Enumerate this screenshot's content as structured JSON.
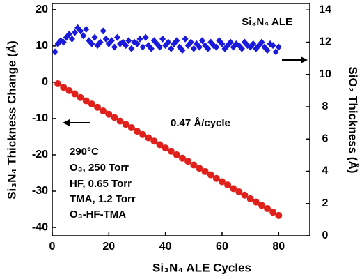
{
  "chart_data": {
    "type": "scatter",
    "xlabel": "Si₃N₄ ALE Cycles",
    "ylabel": "Si₃N₄ Thickness Change (Å)",
    "y2label": "SiO₂ Thickness (Å)",
    "annotations": [
      "Si₃N₄ ALE",
      "0.47 Å/cycle",
      "290°C",
      "O₃, 250 Torr",
      "HF, 0.65 Torr",
      "TMA, 1.2 Torr",
      "O₃-HF-TMA"
    ],
    "xlim": [
      0,
      91
    ],
    "xticks": [
      0,
      20,
      40,
      60,
      80
    ],
    "ylim": [
      -42.3,
      21.7
    ],
    "yticks": [
      -40,
      -30,
      -20,
      -10,
      0,
      10,
      20
    ],
    "y2lim": [
      0,
      14.4
    ],
    "y2ticks": [
      0,
      2,
      4,
      6,
      8,
      10,
      12,
      14
    ],
    "series": [
      {
        "color": "#e0201b",
        "marker": "circle",
        "x": [
          2,
          4,
          6,
          8,
          10,
          12,
          14,
          16,
          18,
          20,
          22,
          24,
          26,
          28,
          30,
          32,
          34,
          36,
          38,
          40,
          42,
          44,
          46,
          48,
          50,
          52,
          54,
          56,
          58,
          60,
          62,
          64,
          66,
          68,
          70,
          72,
          74,
          76,
          78,
          80
        ],
        "values": [
          -0.4,
          -1.4,
          -2.3,
          -3.2,
          -4.2,
          -5.1,
          -6.0,
          -6.9,
          -7.9,
          -8.8,
          -9.7,
          -10.7,
          -11.6,
          -12.5,
          -13.5,
          -14.4,
          -15.3,
          -16.2,
          -17.2,
          -18.1,
          -19.0,
          -20.0,
          -20.9,
          -21.8,
          -22.8,
          -23.7,
          -24.6,
          -25.5,
          -26.5,
          -27.4,
          -28.3,
          -29.3,
          -30.2,
          -31.1,
          -32.1,
          -33.0,
          -33.9,
          -34.8,
          -35.8,
          -36.7
        ]
      },
      {
        "color": "#1a1adc",
        "marker": "diamond",
        "axis": "y2",
        "x": [
          1,
          2,
          3,
          4,
          5,
          6,
          7,
          8,
          9,
          10,
          11,
          12,
          13,
          14,
          15,
          16,
          17,
          18,
          19,
          20,
          21,
          22,
          23,
          24,
          25,
          26,
          27,
          28,
          29,
          30,
          31,
          32,
          33,
          34,
          35,
          36,
          37,
          38,
          39,
          40,
          41,
          42,
          43,
          44,
          45,
          46,
          47,
          48,
          49,
          50,
          51,
          52,
          53,
          54,
          55,
          56,
          57,
          58,
          59,
          60,
          61,
          62,
          63,
          64,
          65,
          66,
          67,
          68,
          69,
          70,
          71,
          72,
          73,
          74,
          75,
          76,
          77,
          78,
          79,
          80
        ],
        "values": [
          11.4,
          11.9,
          12.1,
          12.0,
          12.3,
          12.5,
          12.2,
          12.6,
          12.9,
          12.7,
          12.4,
          12.8,
          12.1,
          11.9,
          12.3,
          11.8,
          12.0,
          12.7,
          12.2,
          11.9,
          12.1,
          11.7,
          12.3,
          11.9,
          12.0,
          11.8,
          12.1,
          11.6,
          12.0,
          11.9,
          12.2,
          11.7,
          12.3,
          11.8,
          11.6,
          12.1,
          11.9,
          11.7,
          12.2,
          11.8,
          12.0,
          11.6,
          11.9,
          12.1,
          11.7,
          11.5,
          12.2,
          11.8,
          12.0,
          11.6,
          11.9,
          11.7,
          12.1,
          11.8,
          11.6,
          12.0,
          11.8,
          11.7,
          12.1,
          11.9,
          11.6,
          11.8,
          12.0,
          11.7,
          11.9,
          11.8,
          11.6,
          12.0,
          11.8,
          11.7,
          11.9,
          11.6,
          11.8,
          12.0,
          11.7,
          11.5,
          11.9,
          11.8,
          11.4,
          11.7
        ]
      }
    ]
  }
}
